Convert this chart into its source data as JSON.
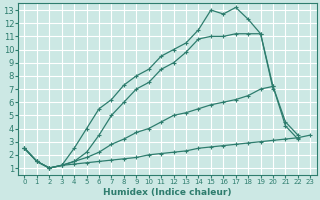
{
  "xlabel": "Humidex (Indice chaleur)",
  "bg_color": "#cce8e4",
  "line_color": "#2e7d6e",
  "grid_color": "#ffffff",
  "xlim": [
    -0.5,
    23.5
  ],
  "ylim": [
    0.5,
    13.5
  ],
  "xticks": [
    0,
    1,
    2,
    3,
    4,
    5,
    6,
    7,
    8,
    9,
    10,
    11,
    12,
    13,
    14,
    15,
    16,
    17,
    18,
    19,
    20,
    21,
    22,
    23
  ],
  "yticks": [
    1,
    2,
    3,
    4,
    5,
    6,
    7,
    8,
    9,
    10,
    11,
    12,
    13
  ],
  "series": [
    {
      "x": [
        0,
        1,
        2,
        3,
        4,
        5,
        6,
        7,
        8,
        9,
        10,
        11,
        12,
        13,
        14,
        15,
        16,
        17,
        18,
        19,
        20
      ],
      "y": [
        2.5,
        1.5,
        1.0,
        1.2,
        2.5,
        4.0,
        5.5,
        6.2,
        7.3,
        8.0,
        8.5,
        9.5,
        10.0,
        10.5,
        11.5,
        13.0,
        12.7,
        13.2,
        12.3,
        11.2,
        7.0
      ]
    },
    {
      "x": [
        0,
        1,
        2,
        3,
        4,
        5,
        6,
        7,
        8,
        9,
        10,
        11,
        12,
        13,
        14,
        15,
        16,
        17,
        18,
        19,
        20,
        21,
        22
      ],
      "y": [
        2.5,
        1.5,
        1.0,
        1.2,
        1.5,
        2.2,
        3.5,
        5.0,
        6.0,
        7.0,
        7.5,
        8.5,
        9.0,
        9.8,
        10.8,
        11.0,
        11.0,
        11.2,
        11.2,
        11.2,
        7.2,
        4.2,
        3.2
      ]
    },
    {
      "x": [
        0,
        1,
        2,
        3,
        4,
        5,
        6,
        7,
        8,
        9,
        10,
        11,
        12,
        13,
        14,
        15,
        16,
        17,
        18,
        19,
        20,
        21,
        22
      ],
      "y": [
        2.5,
        1.5,
        1.0,
        1.2,
        1.5,
        1.8,
        2.2,
        2.8,
        3.2,
        3.7,
        4.0,
        4.5,
        5.0,
        5.2,
        5.5,
        5.8,
        6.0,
        6.2,
        6.5,
        7.0,
        7.2,
        4.5,
        3.5
      ]
    },
    {
      "x": [
        0,
        1,
        2,
        3,
        4,
        5,
        6,
        7,
        8,
        9,
        10,
        11,
        12,
        13,
        14,
        15,
        16,
        17,
        18,
        19,
        20,
        21,
        22,
        23
      ],
      "y": [
        2.5,
        1.5,
        1.0,
        1.2,
        1.3,
        1.4,
        1.5,
        1.6,
        1.7,
        1.8,
        2.0,
        2.1,
        2.2,
        2.3,
        2.5,
        2.6,
        2.7,
        2.8,
        2.9,
        3.0,
        3.1,
        3.2,
        3.3,
        3.5
      ]
    }
  ]
}
